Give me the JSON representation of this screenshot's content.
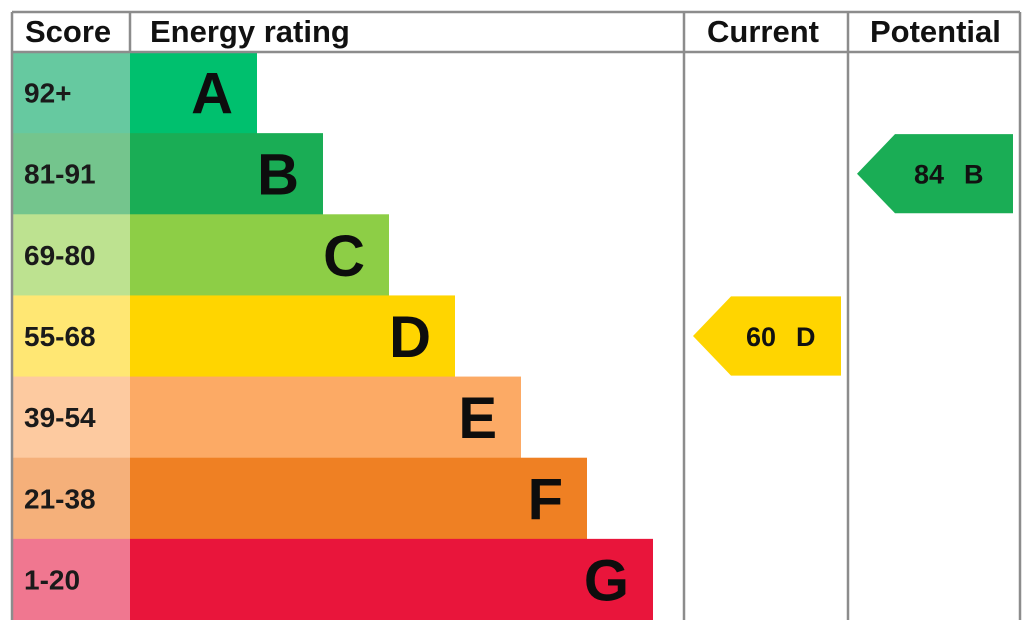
{
  "headers": {
    "score": "Score",
    "energy_rating": "Energy rating",
    "current": "Current",
    "potential": "Potential"
  },
  "chart_data": {
    "type": "bar",
    "categories": [
      "92+",
      "81-91",
      "69-80",
      "55-68",
      "39-54",
      "21-38",
      "1-20"
    ],
    "bands": [
      {
        "score": "92+",
        "letter": "A",
        "color": "#00c06e",
        "score_bg": "#66c9a0"
      },
      {
        "score": "81-91",
        "letter": "B",
        "color": "#1aad55",
        "score_bg": "#74c58d"
      },
      {
        "score": "69-80",
        "letter": "C",
        "color": "#8dce46",
        "score_bg": "#bde290"
      },
      {
        "score": "55-68",
        "letter": "D",
        "color": "#ffd500",
        "score_bg": "#ffe773"
      },
      {
        "score": "39-54",
        "letter": "E",
        "color": "#fcaa65",
        "score_bg": "#fdcaa0"
      },
      {
        "score": "21-38",
        "letter": "F",
        "color": "#ef8023",
        "score_bg": "#f5b07a"
      },
      {
        "score": "1-20",
        "letter": "G",
        "color": "#e9153b",
        "score_bg": "#f07790"
      }
    ],
    "current": {
      "value": "60",
      "letter": "D",
      "band_index": 3,
      "color": "#ffd500"
    },
    "potential": {
      "value": "84",
      "letter": "B",
      "band_index": 1,
      "color": "#1aad55"
    }
  }
}
